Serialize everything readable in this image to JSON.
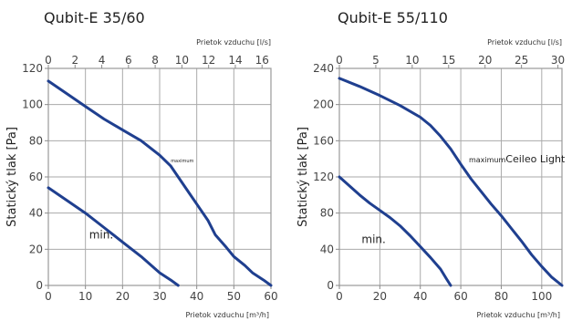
{
  "colors": {
    "curve": "#1f3f8f",
    "grid": "#aaaaaa",
    "frame": "#9a9a9a",
    "tick": "#8a8a8a",
    "axis_text": "#444444"
  },
  "chart_data": [
    {
      "type": "line",
      "title": "Qubit-E 35/60",
      "ylabel": "Statický tlak [Pa]",
      "xlabel_bottom": "Prietok vzduchu [m³/h]",
      "xlabel_top": "Prietok vzduchu [l/s]",
      "xlim": [
        0,
        60
      ],
      "ylim": [
        0,
        120
      ],
      "x_ticks_bottom": [
        0,
        10,
        20,
        30,
        40,
        50,
        60
      ],
      "y_ticks": [
        0,
        20,
        40,
        60,
        80,
        100,
        120
      ],
      "x_ticks_top": [
        0,
        2,
        4,
        6,
        8,
        10,
        12,
        14,
        16
      ],
      "grid": true,
      "series": [
        {
          "name": "maximum",
          "label_at": [
            33,
            68
          ],
          "x": [
            0,
            5,
            10,
            15,
            20,
            25,
            30,
            33,
            35,
            38,
            40,
            43,
            45,
            48,
            50,
            53,
            55,
            58,
            60
          ],
          "y": [
            113,
            106,
            99,
            92,
            86,
            80,
            72,
            66,
            60,
            51,
            45,
            36,
            28,
            21,
            16,
            11,
            7,
            3,
            0
          ]
        },
        {
          "name": "min.",
          "label_at": [
            11,
            26
          ],
          "x": [
            0,
            5,
            10,
            15,
            20,
            25,
            30,
            33,
            35
          ],
          "y": [
            54,
            47,
            40,
            32,
            24,
            16,
            7,
            3,
            0
          ]
        }
      ]
    },
    {
      "type": "line",
      "title": "Qubit-E 55/110",
      "ylabel": "Statický tlak [Pa]",
      "xlabel_bottom": "Prietok vzduchu [m³/h]",
      "xlabel_top": "Prietok vzduchu [l/s]",
      "xlim": [
        0,
        110
      ],
      "ylim": [
        0,
        240
      ],
      "x_ticks_bottom": [
        0,
        20,
        40,
        60,
        80,
        100
      ],
      "y_ticks": [
        0,
        40,
        80,
        120,
        160,
        200,
        240
      ],
      "x_ticks_top": [
        0,
        5,
        10,
        15,
        20,
        25,
        30
      ],
      "grid": true,
      "series": [
        {
          "name": "maximumCeileo Light",
          "label_at": [
            64,
            136
          ],
          "x": [
            0,
            10,
            20,
            30,
            40,
            45,
            50,
            55,
            60,
            65,
            70,
            75,
            80,
            85,
            90,
            95,
            100,
            105,
            110
          ],
          "y": [
            229,
            220,
            210,
            199,
            186,
            177,
            165,
            151,
            134,
            118,
            104,
            90,
            77,
            63,
            49,
            34,
            21,
            9,
            0
          ]
        },
        {
          "name": "min.",
          "label_at": [
            11,
            47
          ],
          "x": [
            0,
            5,
            10,
            15,
            20,
            25,
            30,
            35,
            40,
            45,
            50,
            53,
            55
          ],
          "y": [
            120,
            110,
            100,
            91,
            83,
            75,
            66,
            55,
            43,
            31,
            18,
            7,
            0
          ]
        }
      ]
    }
  ]
}
